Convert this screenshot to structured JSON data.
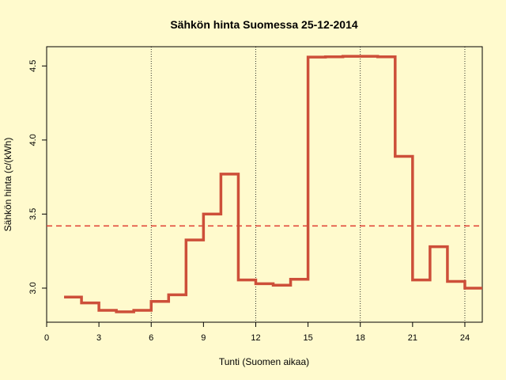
{
  "chart_data": {
    "type": "line",
    "step": true,
    "title": "Sähkön hinta Suomessa 25-12-2014",
    "xlabel": "Tunti (Suomen aikaa)",
    "ylabel": "Sähkön hinta (c/(kWh)",
    "xlim": [
      0,
      25
    ],
    "ylim": [
      2.77,
      4.63
    ],
    "xticks": [
      "0",
      "3",
      "6",
      "9",
      "12",
      "15",
      "18",
      "21",
      "24"
    ],
    "yticks": [
      "3.0",
      "3.5",
      "4.0",
      "4.5"
    ],
    "vertical_gridlines": [
      6,
      12,
      18,
      24
    ],
    "series": [
      {
        "color": "#cd4f39",
        "hours": [
          1,
          2,
          3,
          4,
          5,
          6,
          7,
          8,
          9,
          10,
          11,
          12,
          13,
          14,
          15,
          16,
          17,
          18,
          19,
          20,
          21,
          22,
          23,
          24
        ],
        "values": [
          2.94,
          2.9,
          2.85,
          2.84,
          2.85,
          2.91,
          2.955,
          3.325,
          3.5,
          3.77,
          3.055,
          3.03,
          3.02,
          3.06,
          4.56,
          4.562,
          4.565,
          4.565,
          4.562,
          3.89,
          3.055,
          3.28,
          3.045,
          3.0
        ]
      }
    ],
    "reference_line": {
      "value": 3.42,
      "style": "dashed",
      "color": "#e03c31"
    }
  }
}
